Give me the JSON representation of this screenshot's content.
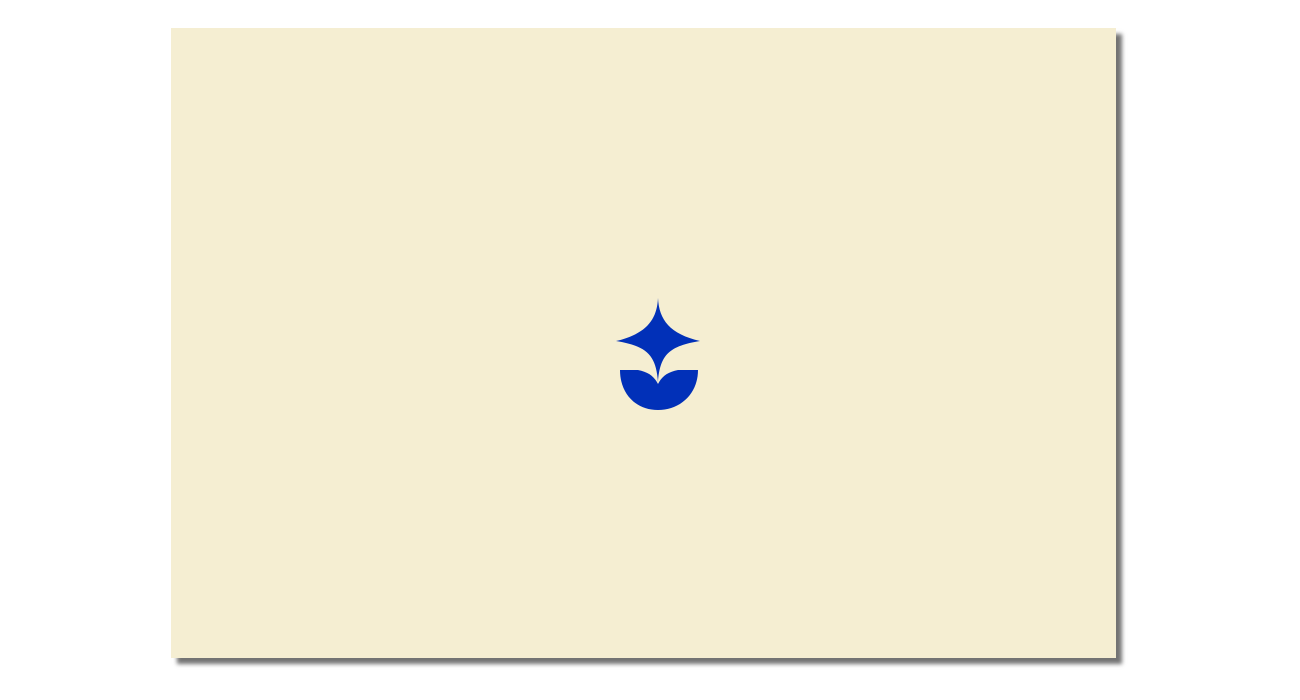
{
  "colors": {
    "page_background": "#ffffff",
    "card_background": "#f5eed2",
    "logo_color": "#0130b8"
  },
  "logo": {
    "icon": "sparkle-bowl-logo-icon"
  }
}
